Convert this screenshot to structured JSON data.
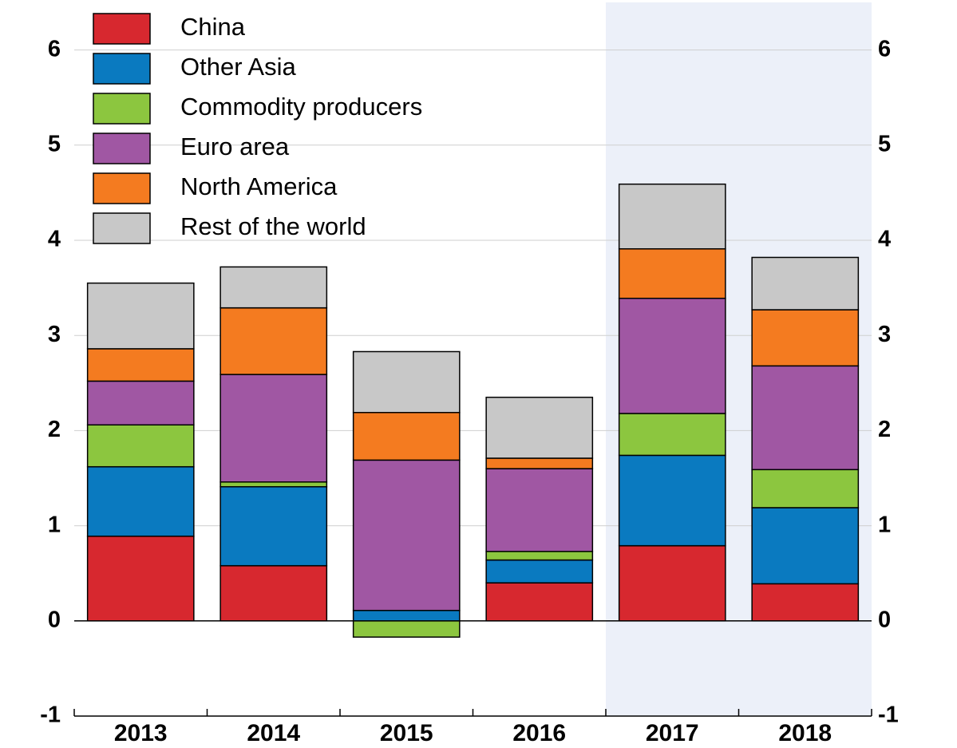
{
  "chart_data": {
    "type": "stacked_bar",
    "categories": [
      "2013",
      "2014",
      "2015",
      "2016",
      "2017",
      "2018"
    ],
    "series": [
      {
        "name": "China",
        "color": "#d7282f",
        "values": [
          0.89,
          0.58,
          0,
          0.4,
          0.79,
          0.39
        ]
      },
      {
        "name": "Other Asia",
        "color": "#0a7ac0",
        "values": [
          0.73,
          0.83,
          0.11,
          0.24,
          0.95,
          0.8
        ]
      },
      {
        "name": "Commodity producers",
        "color": "#8cc63f",
        "values": [
          0.44,
          0.05,
          -0.17,
          0.09,
          0.44,
          0.4
        ]
      },
      {
        "name": "Euro area",
        "color": "#a057a3",
        "values": [
          0.46,
          1.13,
          1.58,
          0.87,
          1.21,
          1.09
        ]
      },
      {
        "name": "North America",
        "color": "#f47b20",
        "values": [
          0.34,
          0.7,
          0.5,
          0.11,
          0.52,
          0.59
        ]
      },
      {
        "name": "Rest of the world",
        "color": "#c8c8c8",
        "values": [
          0.69,
          0.43,
          0.64,
          0.64,
          0.68,
          0.55
        ]
      }
    ],
    "ylim": [
      -1,
      6.5
    ],
    "yticks": [
      -1,
      0,
      1,
      2,
      3,
      4,
      5,
      6
    ],
    "grid": true,
    "legend": "upper left",
    "shaded": [
      "2017",
      "2018"
    ],
    "shade_color": "#ecf0f9"
  }
}
